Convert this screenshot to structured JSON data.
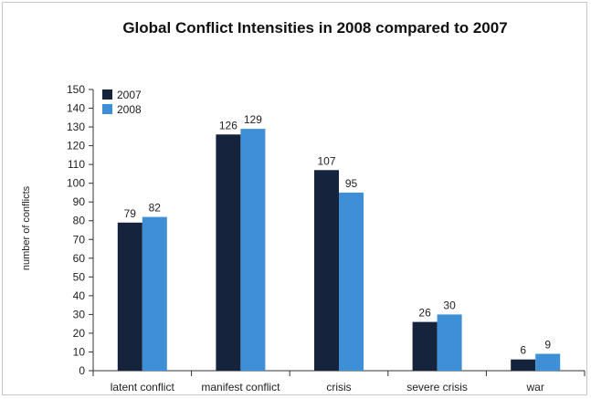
{
  "chart_data": {
    "type": "bar",
    "title": "Global Conflict Intensities in 2008 compared to 2007",
    "xlabel": "",
    "ylabel": "number of conflicts",
    "ylim": [
      0,
      150
    ],
    "yticks": [
      0,
      10,
      20,
      30,
      40,
      50,
      60,
      70,
      80,
      90,
      100,
      110,
      120,
      130,
      140,
      150
    ],
    "categories": [
      "latent conflict",
      "manifest conflict",
      "crisis",
      "severe crisis",
      "war"
    ],
    "series": [
      {
        "name": "2007",
        "color": "#16233d",
        "values": [
          79,
          126,
          107,
          26,
          6
        ]
      },
      {
        "name": "2008",
        "color": "#3f8fd6",
        "values": [
          82,
          129,
          95,
          30,
          9
        ]
      }
    ],
    "legend_position": "top-left",
    "grid": false,
    "data_labels": true
  }
}
